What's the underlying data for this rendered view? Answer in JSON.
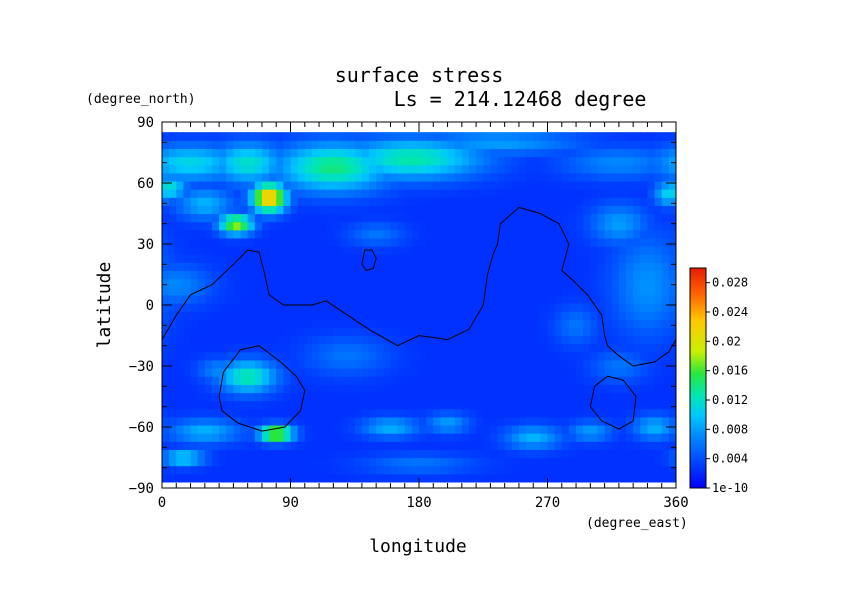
{
  "chart_data": {
    "type": "heatmap",
    "title": "surface stress",
    "subtitle": "Ls = 214.12468 degree",
    "xlabel": "longitude",
    "ylabel": "latitude",
    "x_units": "(degree_east)",
    "y_units": "(degree_north)",
    "xlim": [
      0,
      360
    ],
    "ylim": [
      -90,
      90
    ],
    "data_lat_extent": [
      -87,
      85
    ],
    "x_ticks": [
      0,
      90,
      180,
      270,
      360
    ],
    "y_ticks": [
      90,
      60,
      30,
      0,
      -30,
      -60,
      -90
    ],
    "colorbar": {
      "range": [
        0,
        0.03
      ],
      "tick_labels": [
        "1e-10",
        "0.004",
        "0.008",
        "0.012",
        "0.016",
        "0.02",
        "0.024",
        "0.028"
      ],
      "tick_values": [
        0,
        0.004,
        0.008,
        0.012,
        0.016,
        0.02,
        0.024,
        0.028
      ],
      "colormap": [
        "#0000ff",
        "#0046ff",
        "#008cff",
        "#00c8ff",
        "#00e6b4",
        "#28e640",
        "#c8f000",
        "#ffc800",
        "#ff6400",
        "#e61e00"
      ],
      "color_positions": [
        0.0,
        0.12,
        0.24,
        0.33,
        0.42,
        0.52,
        0.62,
        0.76,
        0.88,
        1.0
      ]
    },
    "background_level": 0.0025,
    "blobs": [
      {
        "lon": 20,
        "lat": 70,
        "rlon": 35,
        "rlat": 9,
        "value": 0.011
      },
      {
        "lon": 60,
        "lat": 70,
        "rlon": 25,
        "rlat": 10,
        "value": 0.012
      },
      {
        "lon": 120,
        "lat": 68,
        "rlon": 40,
        "rlat": 12,
        "value": 0.014
      },
      {
        "lon": 175,
        "lat": 72,
        "rlon": 50,
        "rlat": 10,
        "value": 0.013
      },
      {
        "lon": 235,
        "lat": 80,
        "rlon": 60,
        "rlat": 6,
        "value": 0.008
      },
      {
        "lon": 320,
        "lat": 70,
        "rlon": 40,
        "rlat": 8,
        "value": 0.007
      },
      {
        "lon": 5,
        "lat": 58,
        "rlon": 12,
        "rlat": 6,
        "value": 0.012
      },
      {
        "lon": 355,
        "lat": 55,
        "rlon": 10,
        "rlat": 6,
        "value": 0.011
      },
      {
        "lon": 75,
        "lat": 53,
        "rlon": 12,
        "rlat": 7,
        "value": 0.024
      },
      {
        "lon": 52,
        "lat": 40,
        "rlon": 12,
        "rlat": 5,
        "value": 0.018
      },
      {
        "lon": 30,
        "lat": 50,
        "rlon": 20,
        "rlat": 8,
        "value": 0.009
      },
      {
        "lon": 150,
        "lat": 35,
        "rlon": 20,
        "rlat": 6,
        "value": 0.006
      },
      {
        "lon": 320,
        "lat": 40,
        "rlon": 20,
        "rlat": 10,
        "value": 0.008
      },
      {
        "lon": 340,
        "lat": 10,
        "rlon": 25,
        "rlat": 25,
        "value": 0.0075
      },
      {
        "lon": 290,
        "lat": -10,
        "rlon": 15,
        "rlat": 10,
        "value": 0.006
      },
      {
        "lon": 10,
        "lat": 10,
        "rlon": 25,
        "rlat": 10,
        "value": 0.007
      },
      {
        "lon": 60,
        "lat": -35,
        "rlon": 20,
        "rlat": 8,
        "value": 0.013
      },
      {
        "lon": 40,
        "lat": -32,
        "rlon": 15,
        "rlat": 6,
        "value": 0.007
      },
      {
        "lon": 130,
        "lat": -25,
        "rlon": 30,
        "rlat": 10,
        "value": 0.006
      },
      {
        "lon": 80,
        "lat": -63,
        "rlon": 12,
        "rlat": 4,
        "value": 0.02
      },
      {
        "lon": 30,
        "lat": -62,
        "rlon": 25,
        "rlat": 6,
        "value": 0.009
      },
      {
        "lon": 160,
        "lat": -60,
        "rlon": 20,
        "rlat": 5,
        "value": 0.009
      },
      {
        "lon": 200,
        "lat": -58,
        "rlon": 15,
        "rlat": 5,
        "value": 0.008
      },
      {
        "lon": 260,
        "lat": -65,
        "rlon": 20,
        "rlat": 6,
        "value": 0.009
      },
      {
        "lon": 300,
        "lat": -62,
        "rlon": 15,
        "rlat": 5,
        "value": 0.008
      },
      {
        "lon": 345,
        "lat": -60,
        "rlon": 15,
        "rlat": 6,
        "value": 0.009
      },
      {
        "lon": 15,
        "lat": -75,
        "rlon": 15,
        "rlat": 4,
        "value": 0.011
      },
      {
        "lon": 180,
        "lat": -78,
        "rlon": 40,
        "rlat": 5,
        "value": 0.006
      },
      {
        "lon": 320,
        "lat": -30,
        "rlon": 20,
        "rlat": 8,
        "value": 0.006
      }
    ],
    "contours": [
      {
        "name": "dichotomy-boundary",
        "points": [
          [
            0,
            -17
          ],
          [
            10,
            -5
          ],
          [
            20,
            5
          ],
          [
            35,
            10
          ],
          [
            50,
            20
          ],
          [
            60,
            27
          ],
          [
            68,
            26
          ],
          [
            72,
            15
          ],
          [
            75,
            5
          ],
          [
            85,
            0
          ],
          [
            105,
            0
          ],
          [
            115,
            2
          ],
          [
            130,
            -5
          ],
          [
            145,
            -12
          ],
          [
            165,
            -20
          ],
          [
            180,
            -15
          ],
          [
            200,
            -17
          ],
          [
            215,
            -12
          ],
          [
            225,
            0
          ],
          [
            228,
            15
          ],
          [
            232,
            25
          ],
          [
            235,
            30
          ],
          [
            237,
            40
          ],
          [
            250,
            48
          ],
          [
            265,
            45
          ],
          [
            278,
            40
          ],
          [
            285,
            30
          ],
          [
            282,
            22
          ],
          [
            280,
            17
          ],
          [
            288,
            12
          ],
          [
            298,
            5
          ],
          [
            308,
            -5
          ],
          [
            310,
            -15
          ],
          [
            312,
            -20
          ],
          [
            320,
            -25
          ],
          [
            330,
            -30
          ],
          [
            345,
            -28
          ],
          [
            355,
            -23
          ],
          [
            360,
            -17
          ]
        ]
      },
      {
        "name": "small-loop",
        "points": [
          [
            140,
            20
          ],
          [
            142,
            27
          ],
          [
            147,
            27
          ],
          [
            150,
            23
          ],
          [
            148,
            18
          ],
          [
            143,
            17
          ],
          [
            140,
            20
          ]
        ]
      },
      {
        "name": "left-basin",
        "points": [
          [
            40,
            -45
          ],
          [
            43,
            -33
          ],
          [
            55,
            -22
          ],
          [
            68,
            -20
          ],
          [
            83,
            -28
          ],
          [
            94,
            -35
          ],
          [
            100,
            -42
          ],
          [
            97,
            -52
          ],
          [
            86,
            -60
          ],
          [
            70,
            -62
          ],
          [
            53,
            -58
          ],
          [
            42,
            -52
          ],
          [
            40,
            -45
          ]
        ]
      },
      {
        "name": "right-basin",
        "points": [
          [
            300,
            -50
          ],
          [
            303,
            -40
          ],
          [
            312,
            -35
          ],
          [
            323,
            -37
          ],
          [
            332,
            -45
          ],
          [
            330,
            -57
          ],
          [
            320,
            -61
          ],
          [
            308,
            -57
          ],
          [
            300,
            -50
          ]
        ]
      }
    ]
  }
}
